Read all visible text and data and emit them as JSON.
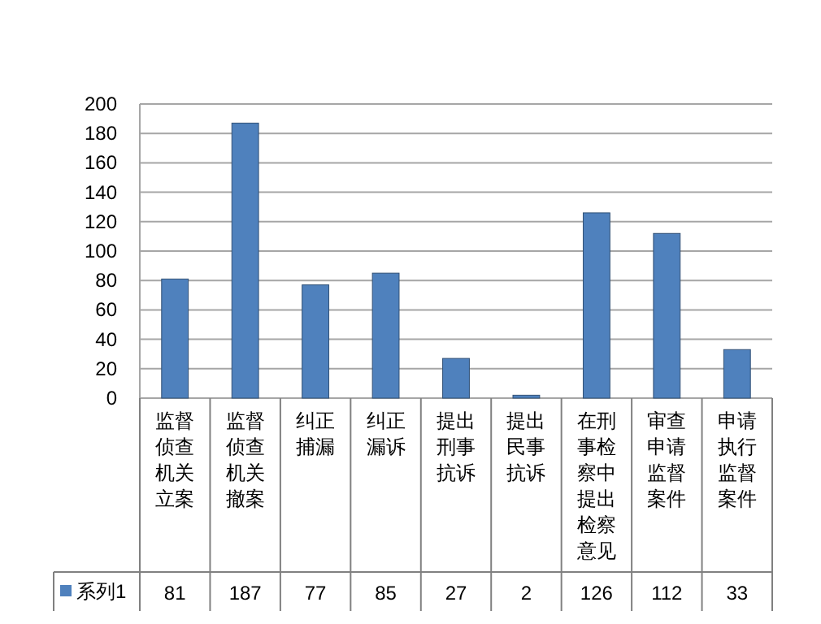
{
  "chart_data": {
    "type": "bar",
    "categories": [
      "监督侦查机关立案",
      "监督侦查机关撤案",
      "纠正捕漏",
      "纠正漏诉",
      "提出刑事抗诉",
      "提出民事抗诉",
      "在刑事检察中提出检察意见",
      "审查申请监督案件",
      "申请执行监督案件"
    ],
    "series": [
      {
        "name": "系列1",
        "color": "#4f81bd",
        "values": [
          81,
          187,
          77,
          85,
          27,
          2,
          126,
          112,
          33
        ]
      }
    ],
    "ylim": [
      0,
      200
    ],
    "yticks": [
      0,
      20,
      40,
      60,
      80,
      100,
      120,
      140,
      160,
      180,
      200
    ],
    "grid": "y",
    "data_labels": true,
    "legend": "bottom"
  }
}
